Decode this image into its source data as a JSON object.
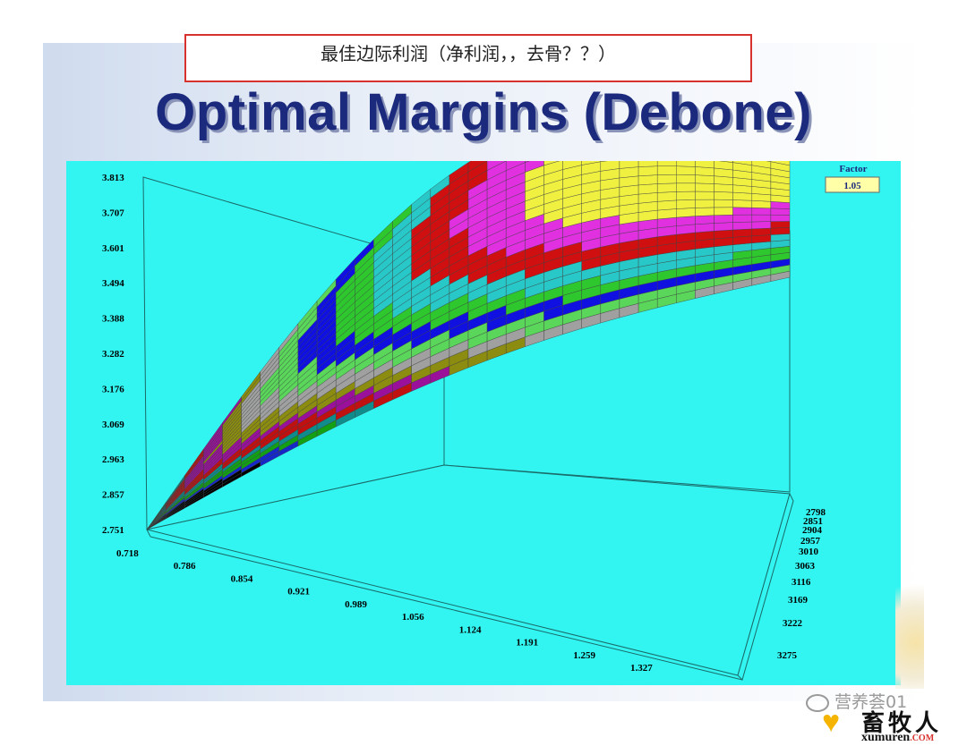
{
  "caption": "最佳边际利润（净利润，，去骨？？）",
  "title": "Optimal Margins (Debone)",
  "factor": {
    "label": "Factor",
    "value": "1.05"
  },
  "watermark": {
    "text": "营养荟01"
  },
  "logo": {
    "cn": "畜牧人",
    "en": "xumuren",
    "en_suffix": ".COM"
  },
  "colors": {
    "panel": "#32f5f1",
    "bands": [
      "#000000",
      "#1628c8",
      "#14a014",
      "#108c8c",
      "#c01010",
      "#9a109a",
      "#8c8c10",
      "#a0a0a0",
      "#5ad65a",
      "#1010e0",
      "#2ec82e",
      "#28c8c8",
      "#d01010",
      "#e030e0",
      "#f0f040"
    ]
  },
  "chart_data": {
    "type": "surface-3d",
    "title": "Optimal Margins (Debone)",
    "z_ticks": [
      "3.813",
      "3.707",
      "3.601",
      "3.494",
      "3.388",
      "3.282",
      "3.176",
      "3.069",
      "2.963",
      "2.857",
      "2.751"
    ],
    "x_ticks": [
      "0.718",
      "0.786",
      "0.854",
      "0.921",
      "0.989",
      "1.056",
      "1.124",
      "1.191",
      "1.259",
      "1.327"
    ],
    "y_ticks": [
      "2798",
      "2851",
      "2904",
      "2957",
      "3010",
      "3063",
      "3116",
      "3169",
      "3222",
      "3275"
    ],
    "zlim": [
      2.751,
      3.813
    ],
    "xlim": [
      0.718,
      1.327
    ],
    "ylim": [
      2798,
      3275
    ],
    "grid": true
  }
}
